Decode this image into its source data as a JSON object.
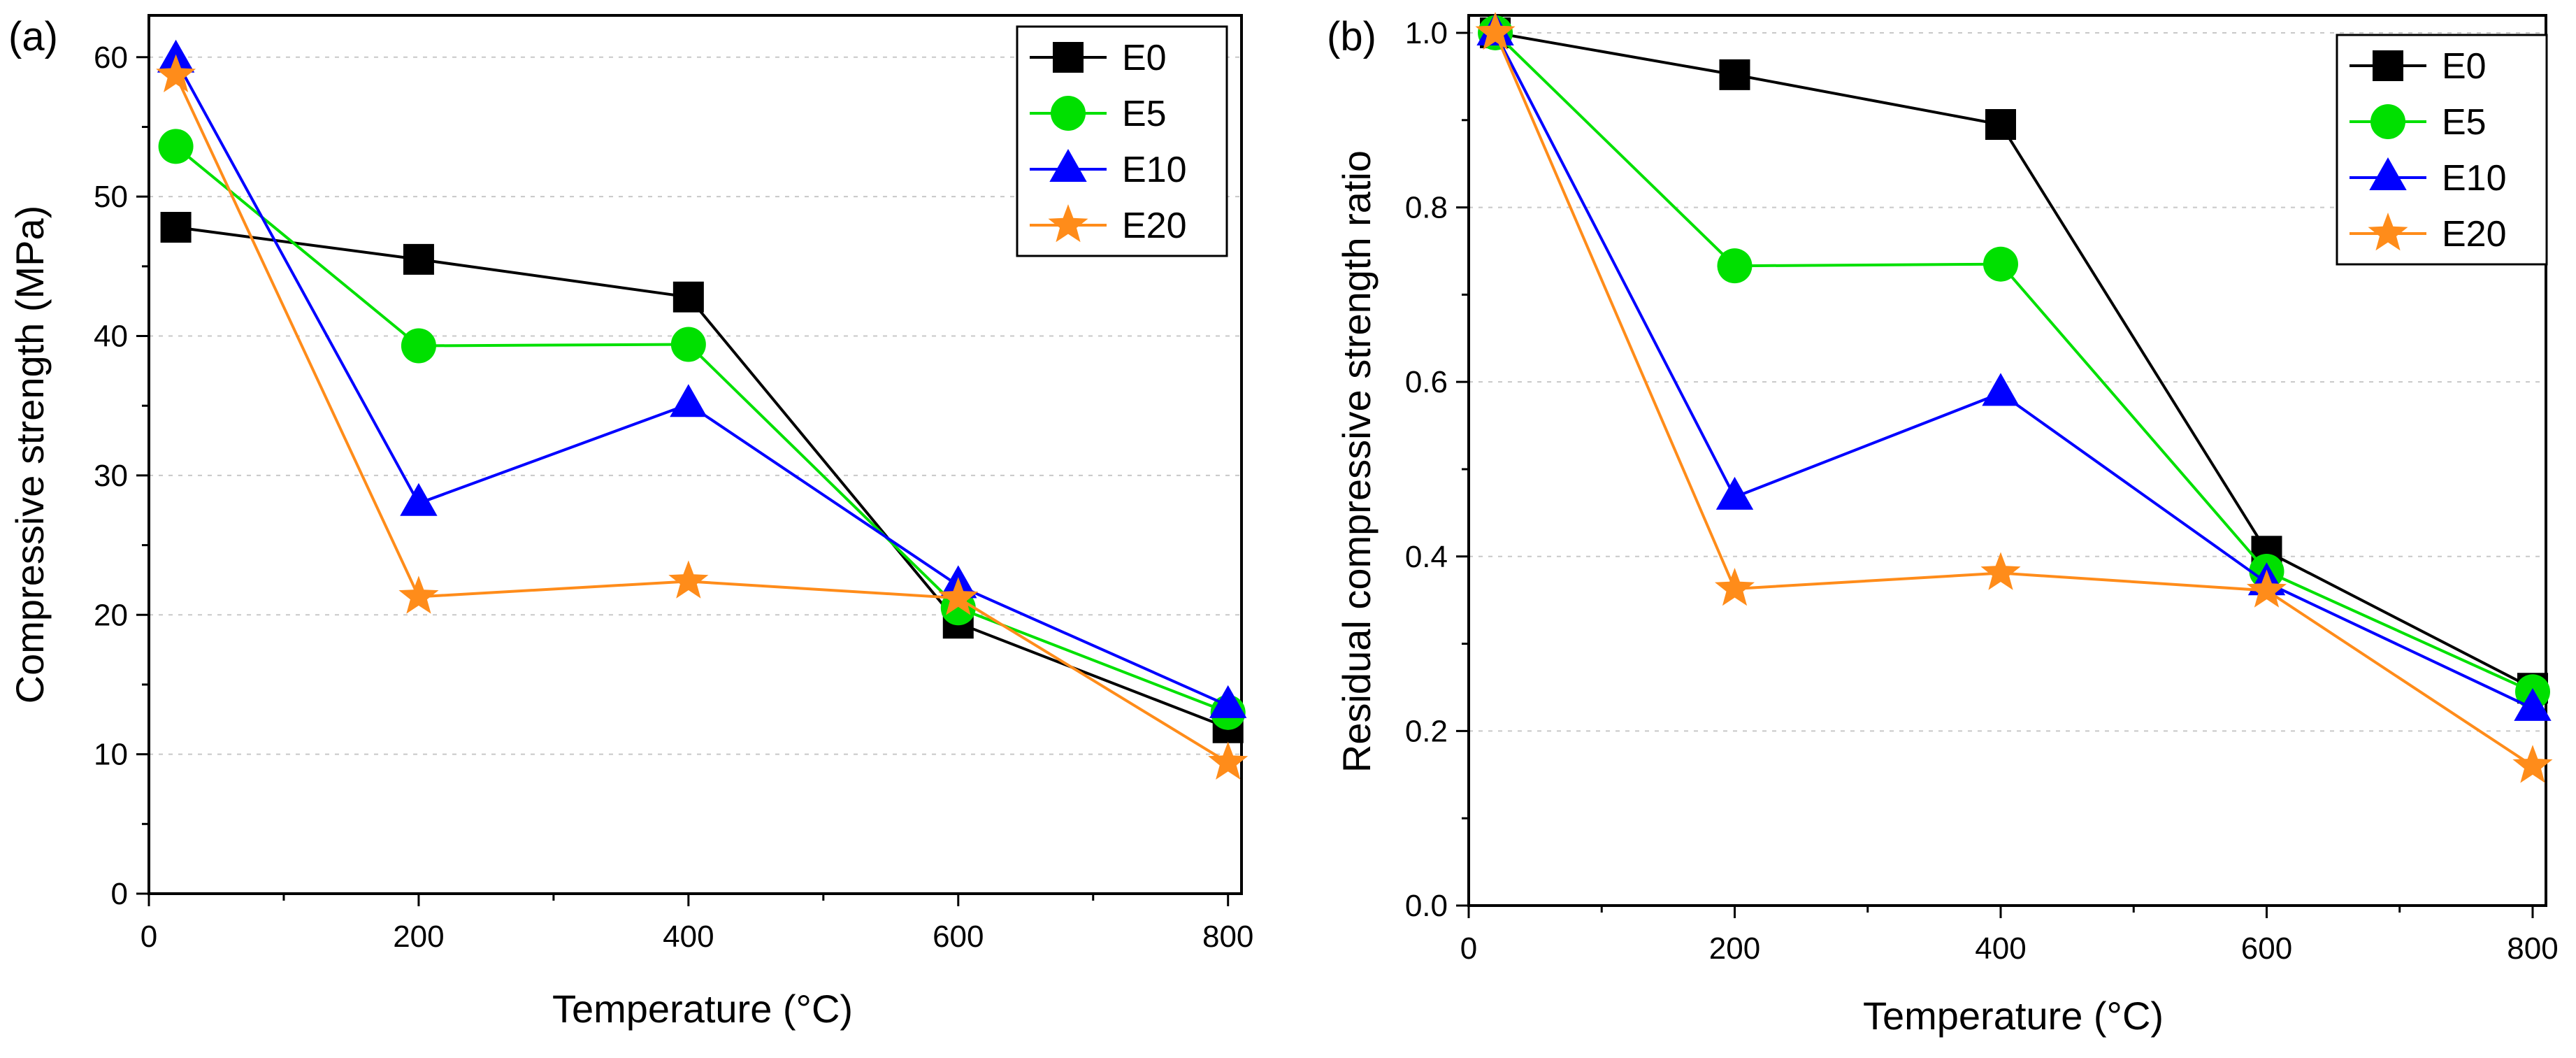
{
  "chart_data": [
    {
      "type": "line",
      "panel_label": "(a)",
      "xlabel": "Temperature (°C)",
      "ylabel": "Compressive strength (MPa)",
      "xlim": [
        0,
        810
      ],
      "ylim": [
        0,
        63
      ],
      "x_ticks": [
        0,
        200,
        400,
        600,
        800
      ],
      "y_ticks": [
        0,
        10,
        20,
        30,
        40,
        50,
        60
      ],
      "x_tick_labels": [
        "0",
        "200",
        "400",
        "600",
        "800"
      ],
      "y_tick_labels": [
        "0",
        "10",
        "20",
        "30",
        "40",
        "50",
        "60"
      ],
      "x": [
        20,
        200,
        400,
        600,
        800
      ],
      "grid": "horizontal, dotted",
      "legend_position": "top-right",
      "series": [
        {
          "name": "E0",
          "color": "#000000",
          "marker": "square",
          "values": [
            47.8,
            45.5,
            42.8,
            19.4,
            11.9
          ]
        },
        {
          "name": "E5",
          "color": "#00e000",
          "marker": "circle",
          "values": [
            53.6,
            39.3,
            39.4,
            20.5,
            13.0
          ]
        },
        {
          "name": "E10",
          "color": "#0000ff",
          "marker": "triangle",
          "values": [
            59.8,
            28.0,
            35.1,
            22.1,
            13.5
          ]
        },
        {
          "name": "E20",
          "color": "#ff8c1a",
          "marker": "star",
          "values": [
            58.7,
            21.3,
            22.4,
            21.2,
            9.4
          ]
        }
      ]
    },
    {
      "type": "line",
      "panel_label": "(b)",
      "xlabel": "Temperature (°C)",
      "ylabel": "Residual compressive strength ratio",
      "xlim": [
        0,
        810
      ],
      "ylim": [
        0,
        1.02
      ],
      "x_ticks": [
        0,
        200,
        400,
        600,
        800
      ],
      "y_ticks": [
        0.0,
        0.2,
        0.4,
        0.6,
        0.8,
        1.0
      ],
      "x_tick_labels": [
        "0",
        "200",
        "400",
        "600",
        "800"
      ],
      "y_tick_labels": [
        "0.0",
        "0.2",
        "0.4",
        "0.6",
        "0.8",
        "1.0"
      ],
      "x": [
        20,
        200,
        400,
        600,
        800
      ],
      "grid": "horizontal, dotted",
      "legend_position": "top-right",
      "series": [
        {
          "name": "E0",
          "color": "#000000",
          "marker": "square",
          "values": [
            1.0,
            0.952,
            0.895,
            0.406,
            0.249
          ]
        },
        {
          "name": "E5",
          "color": "#00e000",
          "marker": "circle",
          "values": [
            1.0,
            0.733,
            0.735,
            0.383,
            0.245
          ]
        },
        {
          "name": "E10",
          "color": "#0000ff",
          "marker": "triangle",
          "values": [
            1.0,
            0.468,
            0.587,
            0.37,
            0.226
          ]
        },
        {
          "name": "E20",
          "color": "#ff8c1a",
          "marker": "star",
          "values": [
            1.0,
            0.363,
            0.381,
            0.361,
            0.16
          ]
        }
      ]
    }
  ]
}
